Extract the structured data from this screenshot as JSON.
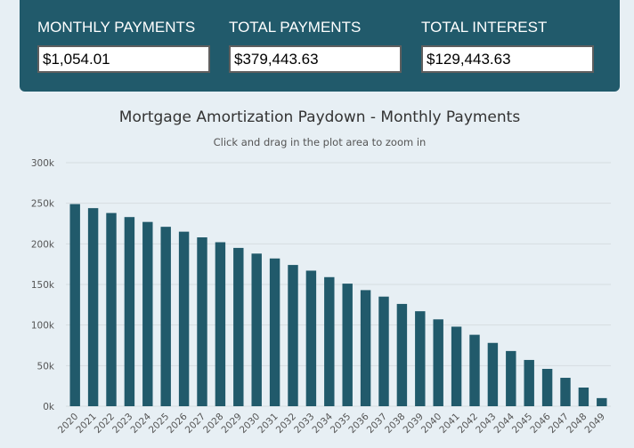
{
  "summary": {
    "monthly": {
      "label": "MONTHLY PAYMENTS",
      "value": "$1,054.01"
    },
    "total_payments": {
      "label": "TOTAL PAYMENTS",
      "value": "$379,443.63"
    },
    "total_interest": {
      "label": "TOTAL INTEREST",
      "value": "$129,443.63"
    }
  },
  "colors": {
    "panel": "#215a6b",
    "bar": "#215a6b",
    "background": "#e7eff4"
  },
  "chart_data": {
    "type": "bar",
    "title": "Mortgage Amortization Paydown - Monthly Payments",
    "subtitle": "Click and drag in the plot area to zoom in",
    "xlabel": "",
    "ylabel": "",
    "ylim": [
      0,
      300000
    ],
    "yticks": [
      0,
      50000,
      100000,
      150000,
      200000,
      250000,
      300000
    ],
    "ytick_labels": [
      "0k",
      "50k",
      "100k",
      "150k",
      "200k",
      "250k",
      "300k"
    ],
    "grid": true,
    "categories": [
      "2020",
      "2021",
      "2022",
      "2023",
      "2024",
      "2025",
      "2026",
      "2027",
      "2028",
      "2029",
      "2030",
      "2031",
      "2032",
      "2033",
      "2034",
      "2035",
      "2036",
      "2037",
      "2038",
      "2039",
      "2040",
      "2041",
      "2042",
      "2043",
      "2044",
      "2045",
      "2046",
      "2047",
      "2048",
      "2049"
    ],
    "values": [
      249000,
      244000,
      238000,
      233000,
      227000,
      221000,
      215000,
      208000,
      202000,
      195000,
      188000,
      182000,
      174000,
      167000,
      159000,
      151000,
      143000,
      135000,
      126000,
      117000,
      107000,
      98000,
      88000,
      78000,
      68000,
      57000,
      46000,
      35000,
      23000,
      10000
    ]
  }
}
